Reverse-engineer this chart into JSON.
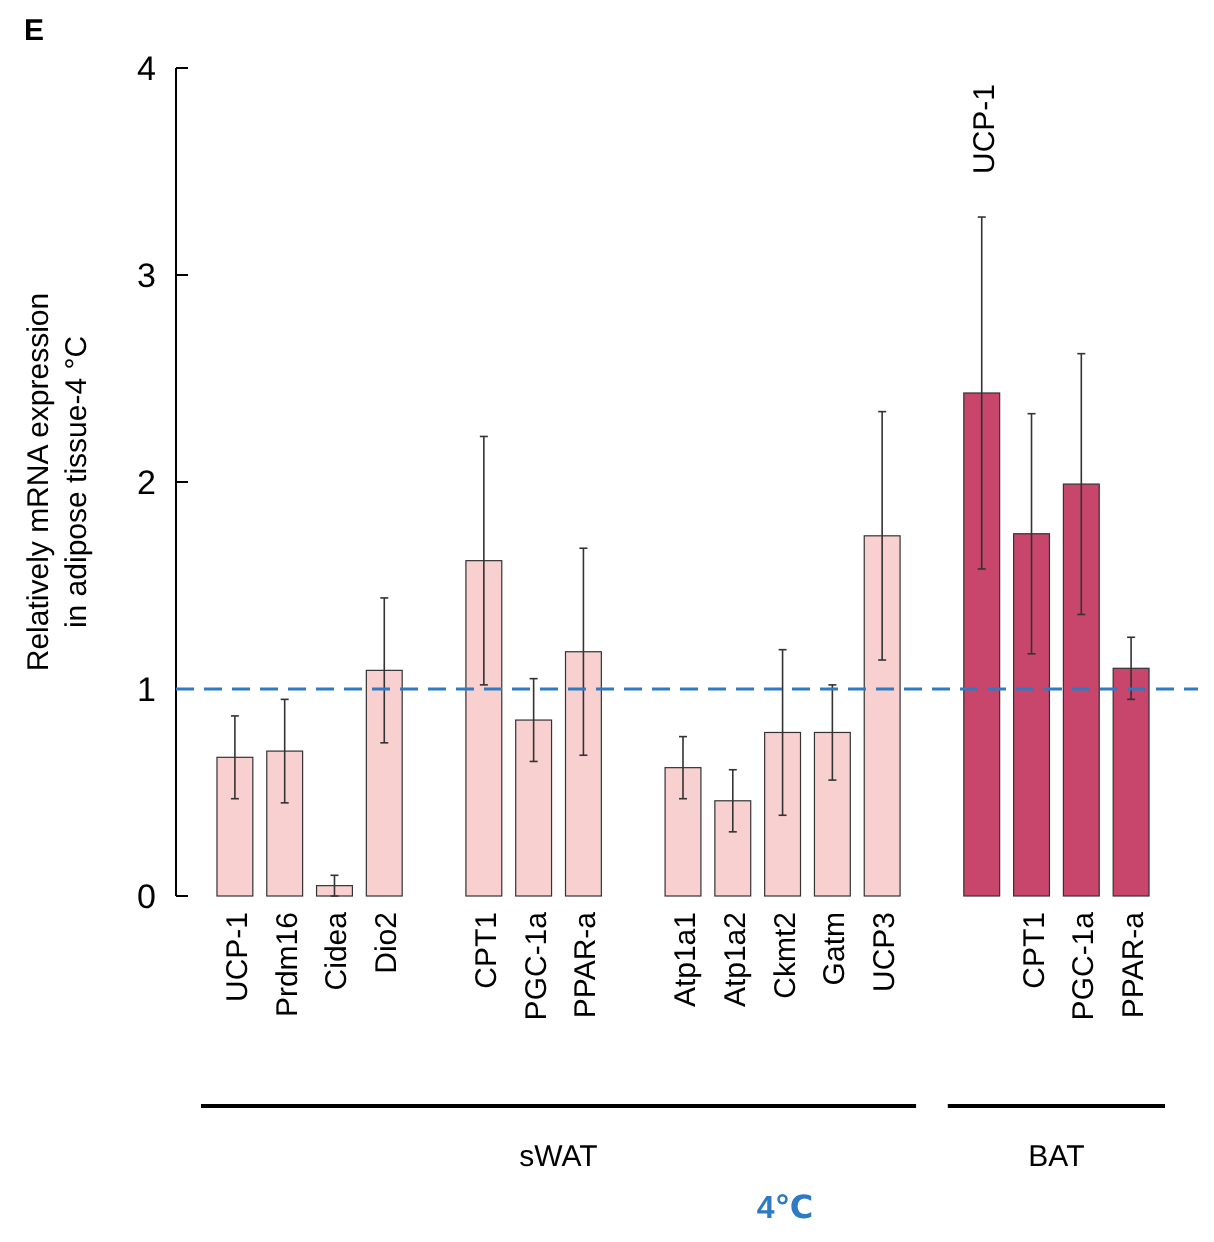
{
  "chart_data": {
    "type": "bar",
    "title": "E",
    "ylabel": "Relatively mRNA expression\nin adipose tissue-4 °C",
    "categories": [
      "UCP-1",
      "Prdm16",
      "Cidea",
      "Dio2",
      null,
      "CPT1",
      "PGC-1a",
      "PPAR-a",
      null,
      "Atp1a1",
      "Atp1a2",
      "Ckmt2",
      "Gatm",
      "UCP3",
      null,
      null,
      "CPT1",
      "PGC-1a",
      "PPAR-a"
    ],
    "values": [
      0.67,
      0.7,
      0.05,
      1.09,
      null,
      1.62,
      0.85,
      1.18,
      null,
      0.62,
      0.46,
      0.79,
      0.79,
      1.74,
      null,
      2.43,
      1.75,
      1.99,
      1.1
    ],
    "errors": [
      0.2,
      0.25,
      0.05,
      0.35,
      null,
      0.6,
      0.2,
      0.5,
      null,
      0.15,
      0.15,
      0.4,
      0.23,
      0.6,
      null,
      0.85,
      0.58,
      0.63,
      0.15
    ],
    "colors": [
      "#f9d0d0",
      "#f9d0d0",
      "#f9d0d0",
      "#f9d0d0",
      null,
      "#f9d0d0",
      "#f9d0d0",
      "#f9d0d0",
      null,
      "#f9d0d0",
      "#f9d0d0",
      "#f9d0d0",
      "#f9d0d0",
      "#f9d0d0",
      null,
      "#c8466c",
      "#c8466c",
      "#c8466c",
      "#c8466c"
    ],
    "ylim": [
      0,
      4
    ],
    "yticks": [
      0,
      1,
      2,
      3,
      4
    ],
    "grid": false,
    "ref_lines": [
      {
        "axis": "y",
        "value": 1,
        "color": "#2e7bc4",
        "line_style": "dashed"
      }
    ],
    "annotations": [
      "UCP-1",
      "sWAT",
      "BAT",
      "4℃"
    ]
  }
}
